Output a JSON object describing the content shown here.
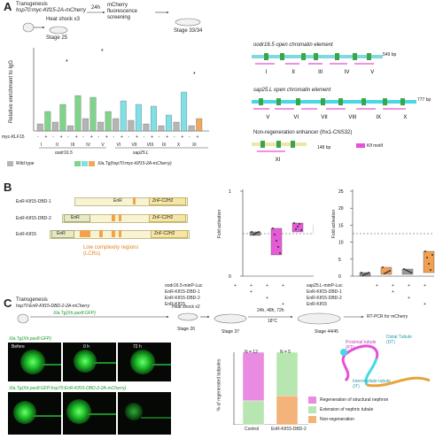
{
  "panelA": {
    "letter": "A",
    "transgenesis": "Transgenesis",
    "construct": "hsp70:myc-Klf15-2A-mCherry",
    "heat_shock": "Heat shock x3",
    "stage25": "Stage 25",
    "t24": "24h",
    "screening": "mCherry fluorescence screening",
    "stage33": "Stage 33/34",
    "ylabel": "Relative enrichment to IgG",
    "myc_label": "myc-KLF15",
    "signs": [
      "-",
      "+",
      "-",
      "+",
      "-",
      "+",
      "-",
      "+",
      "-",
      "+",
      "-",
      "+",
      "-",
      "+",
      "-",
      "+",
      "-",
      "+",
      "-",
      "+",
      "-",
      "+"
    ],
    "regions": [
      "I",
      "II",
      "III",
      "IV",
      "V",
      "VI",
      "VII",
      "VIII",
      "IX",
      "X",
      "XI"
    ],
    "group1": "oodr16.5",
    "group2": "sap25.L",
    "legend_wt": "Wild type",
    "legend_tg": "Xla.Tg(hsp70:myc-Klf15-2A-mCherry)",
    "oodr_title": "oodr16.5 open chromatin element",
    "oodr_bp": "549 bp",
    "oodr_marks": [
      "I",
      "II",
      "III",
      "IV",
      "V"
    ],
    "sap_title": "sap25.L open chromatin element",
    "sap_bp": "777 bp",
    "sap_marks": [
      "V",
      "VI",
      "VII",
      "VIII",
      "IX",
      "X"
    ],
    "nonreg_title": "Non-regeneration enhancer (lhx1-CNS32)",
    "nonreg_bp": "148 bp",
    "nonreg_mark": "XI",
    "klf_motif": "Klf motif",
    "colors": {
      "wt": "#b5b5b5",
      "tg_a": "#7fd38a",
      "tg_b": "#7fe0e6",
      "tg_c": "#f0a860",
      "magenta": "#e64fd8",
      "cyan": "#46d8e6",
      "green_box": "#3aa64a"
    }
  },
  "panelB": {
    "letter": "B",
    "constructs": [
      {
        "name": "EnR-KIf15-DBD-1",
        "enr": "",
        "znf": ""
      },
      {
        "name": "EnR-KIf15-DBD-2",
        "enr": "EnR",
        "znf": "ZnF-C2H2"
      },
      {
        "name": "EnR-KIf15",
        "enr": "EnR",
        "znf": "ZnF-C2H2"
      }
    ],
    "znf_label": "ZnF-C2H2",
    "enr_label": "EnR",
    "lcr_label": "Low complexity regions (LCRs)",
    "plot1_ylabel": "Fold activation",
    "plot1_rows": [
      "oodr16.5-minP-Luc",
      "EnR-KIf15-DBD-1",
      "EnR-KIf15-DBD-2",
      "EnR-KIf15"
    ],
    "plot1_marks": [
      [
        "+",
        "+",
        "+",
        "+"
      ],
      [
        "",
        "+",
        "",
        ""
      ],
      [
        "",
        "",
        "+",
        ""
      ],
      [
        "",
        "",
        "",
        "+"
      ]
    ],
    "plot2_ylabel": "Fold activation",
    "plot2_rows": [
      "sap25.L-minP-Luc",
      "EnR-KIf15-DBD-1",
      "EnR-KIf15-DBD-2",
      "EnR-KIf15"
    ],
    "plot2_ticks": [
      "0",
      "5",
      "10",
      "15",
      "20",
      "25"
    ],
    "plot1_ticks": [
      "0",
      "1"
    ],
    "colors": {
      "magenta": "#e65ad8",
      "orange": "#f0a050",
      "gray": "#777777"
    }
  },
  "panelC": {
    "letter": "C",
    "transgenesis": "Transgenesis",
    "construct": "hsp70:EnR-Klf15-DBD-2-2A-mCherry",
    "construct2": "Xla.Tg(Xtr.pax8:GFP)",
    "heat_shock": "Heat shock x2",
    "stage26": "Stage 26",
    "stage37": "Stage 37",
    "hours": "24h, 48h, 72h",
    "temp": "18°C",
    "stage44": "Stage 44/45",
    "rtpcr": "RT-PCR for mCherry",
    "row1_label": "Xla.Tg(Xtr.pax8:GFP)",
    "row2_label": "Xla.Tg(Xtr.pax8:GFP;hsp70:EnR-Klf15-DBD-2-2A-mCherry)",
    "col_labels": [
      "Before",
      "0 h",
      "72 h"
    ],
    "proximal": "Proximal tubule (PT)",
    "distal": "Distal Tubule (DT)",
    "intermediate": "Intermediate tubule (IT)",
    "ylabel": "% of regenerated tadpoles",
    "n_control": "N = 12",
    "n_exp": "N = 5",
    "x_control": "Control",
    "x_exp": "EnR-KIf15-DBD-2",
    "legend": [
      {
        "label": "Regeneration of structural nephron",
        "color": "#e98be0"
      },
      {
        "label": "Extension of nephric tubule",
        "color": "#b7e6b0"
      },
      {
        "label": "Non-regeneration",
        "color": "#f3b37a"
      }
    ]
  }
}
